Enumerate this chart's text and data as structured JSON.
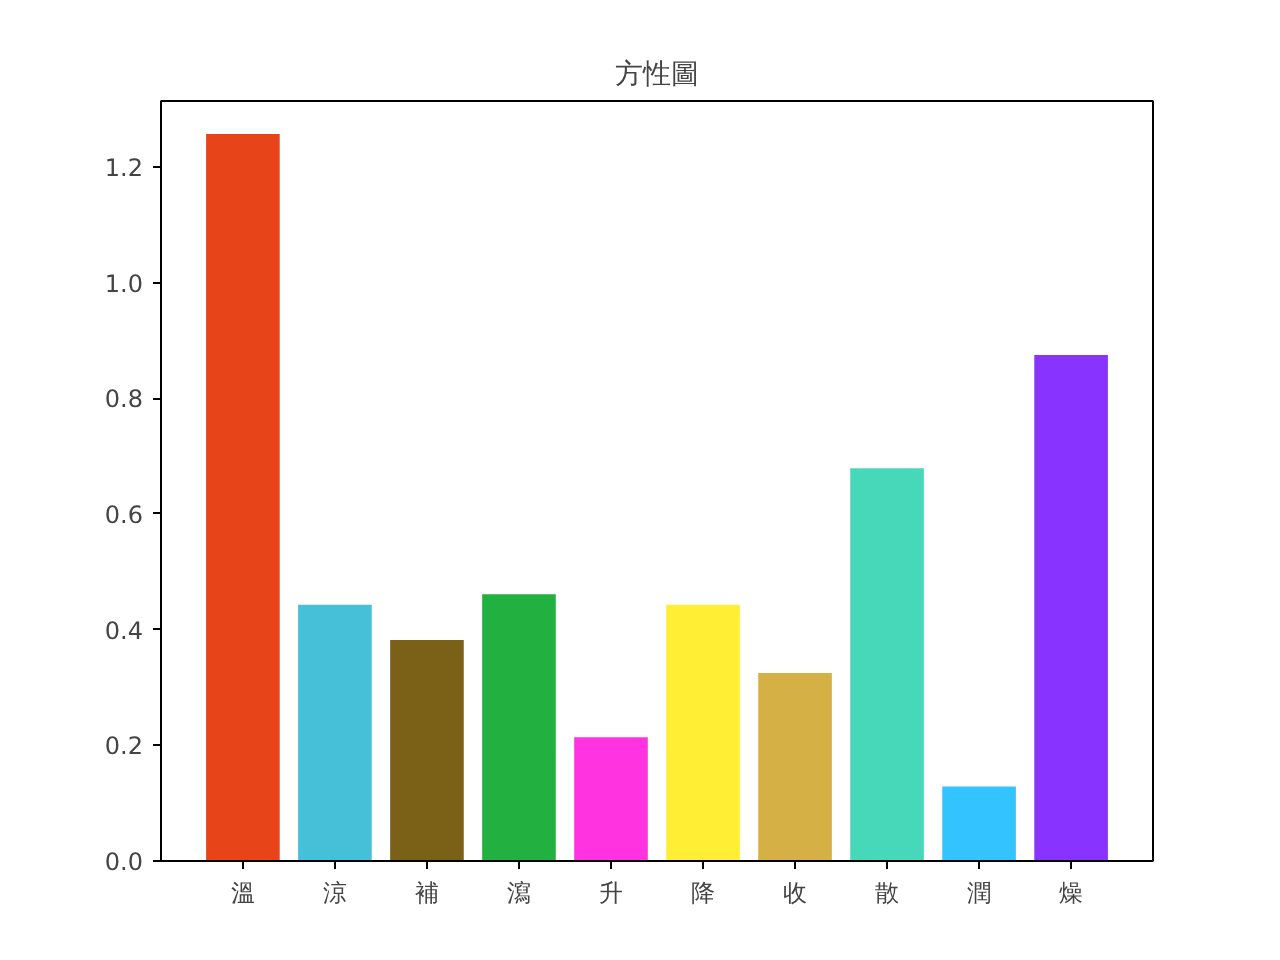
{
  "chart_data": {
    "type": "bar",
    "title": "方性圖",
    "categories": [
      "溫",
      "涼",
      "補",
      "瀉",
      "升",
      "降",
      "收",
      "散",
      "潤",
      "燥"
    ],
    "values": [
      1.257,
      0.443,
      0.382,
      0.461,
      0.214,
      0.443,
      0.325,
      0.679,
      0.129,
      0.875
    ],
    "colors": [
      "#e8441a",
      "#46bfd8",
      "#7a6117",
      "#22b040",
      "#ff33e0",
      "#ffee33",
      "#d5b045",
      "#46d8b8",
      "#33c4ff",
      "#8833ff"
    ],
    "ylim": [
      0,
      1.314
    ],
    "yticks": [
      {
        "value": 0,
        "label": "0.0"
      },
      0.2,
      0.4,
      0.6,
      0.8,
      {
        "value": 1,
        "label": "1.0"
      },
      1.2
    ],
    "grid": false
  }
}
